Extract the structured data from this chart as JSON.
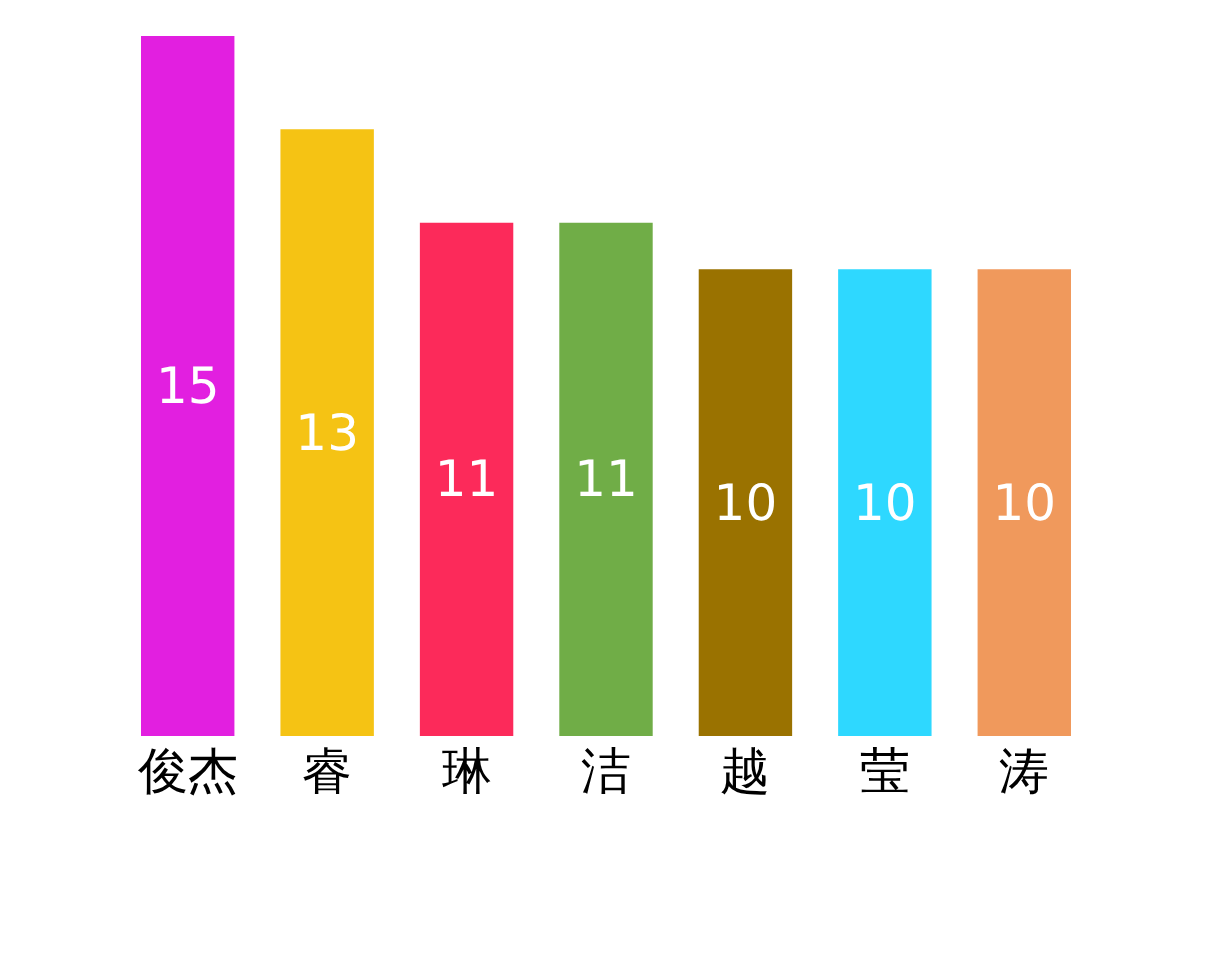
{
  "chart_data": {
    "type": "bar",
    "categories": [
      "俊杰",
      "睿",
      "琳",
      "洁",
      "越",
      "莹",
      "涛"
    ],
    "values": [
      15,
      13,
      11,
      11,
      10,
      10,
      10
    ],
    "colors": [
      "#e21fe0",
      "#f5c314",
      "#fc2a5a",
      "#70ad47",
      "#9a7200",
      "#2ed8ff",
      "#f0995c"
    ],
    "ylim": [
      0,
      15
    ],
    "data_labels": true,
    "grid": false,
    "legend": false,
    "tick_labels": "x"
  }
}
